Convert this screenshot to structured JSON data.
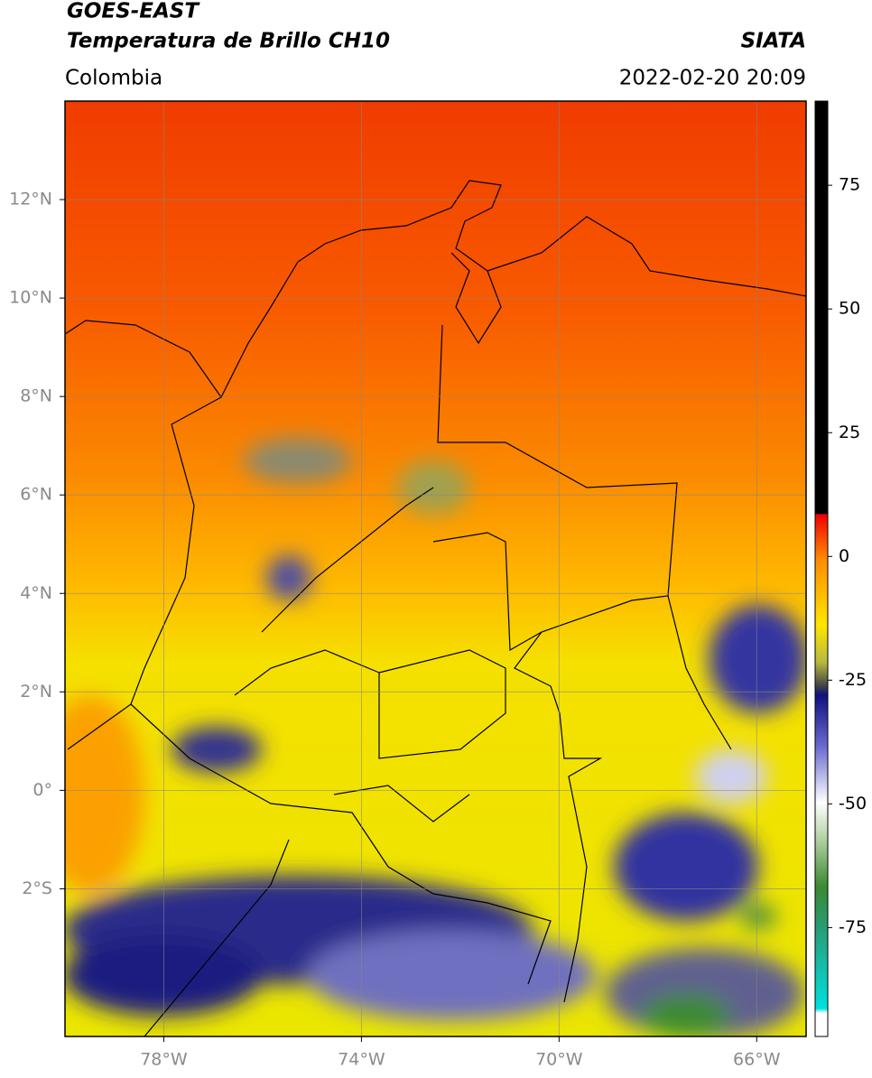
{
  "header": {
    "title": "GOES-EAST",
    "subtitle": "Temperatura de Brillo CH10",
    "source": "SIATA",
    "region": "Colombia",
    "datetime": "2022-02-20 20:09"
  },
  "map": {
    "lon_range": [
      -80,
      -65
    ],
    "lat_range": [
      -5,
      14
    ],
    "lon_ticks": [
      {
        "value": -78,
        "label": "78°W"
      },
      {
        "value": -74,
        "label": "74°W"
      },
      {
        "value": -70,
        "label": "70°W"
      },
      {
        "value": -66,
        "label": "66°W"
      }
    ],
    "lat_ticks": [
      {
        "value": 12,
        "label": "12°N"
      },
      {
        "value": 10,
        "label": "10°N"
      },
      {
        "value": 8,
        "label": "8°N"
      },
      {
        "value": 6,
        "label": "6°N"
      },
      {
        "value": 4,
        "label": "4°N"
      },
      {
        "value": 2,
        "label": "2°N"
      },
      {
        "value": 0,
        "label": "0°"
      },
      {
        "value": -2,
        "label": "2°S"
      }
    ]
  },
  "colorbar": {
    "range": [
      -97,
      92
    ],
    "ticks": [
      75,
      50,
      25,
      0,
      -25,
      -50,
      -75
    ]
  }
}
